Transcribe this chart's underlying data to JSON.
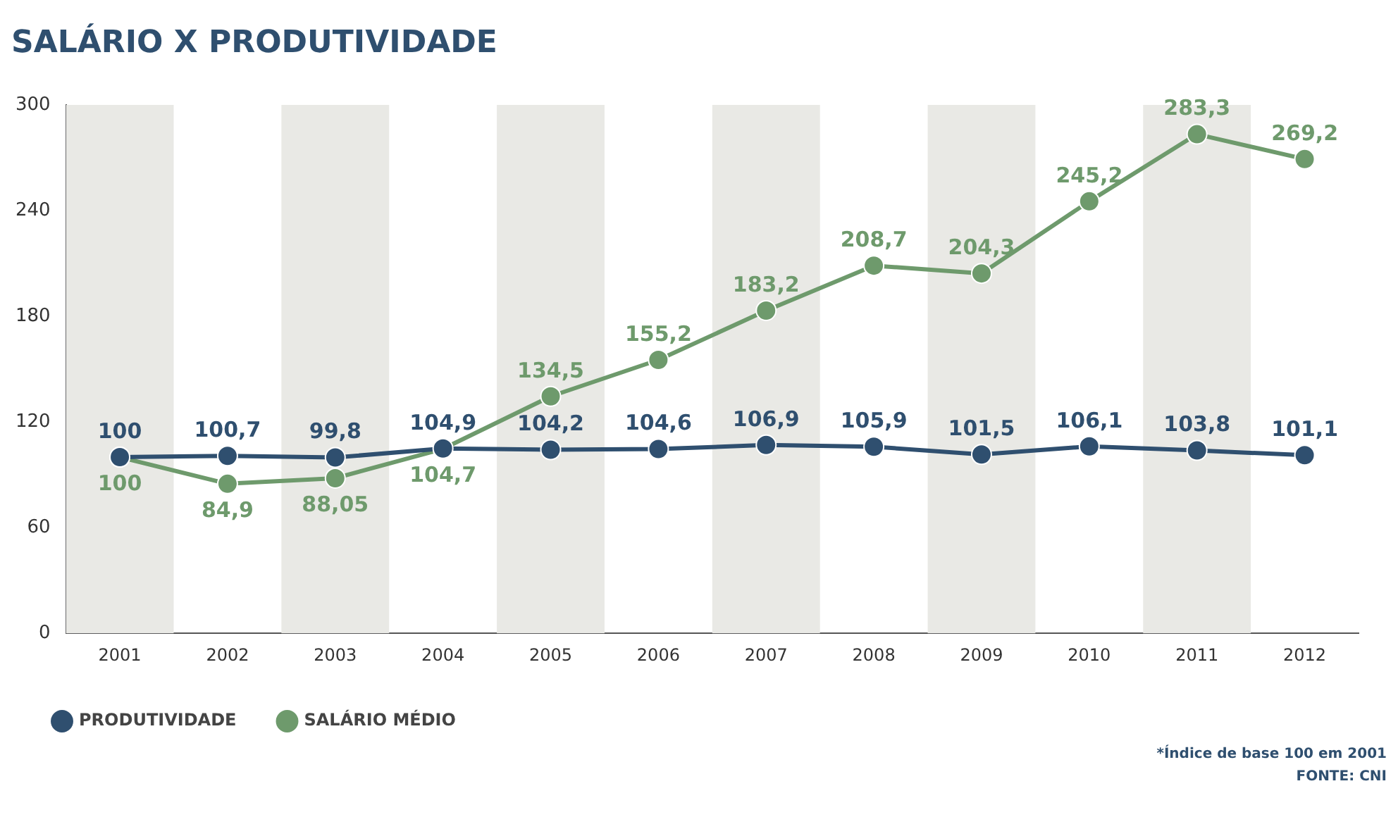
{
  "chart_data": {
    "type": "line",
    "title": "SALÁRIO X PRODUTIVIDADE",
    "categories": [
      "2001",
      "2002",
      "2003",
      "2004",
      "2005",
      "2006",
      "2007",
      "2008",
      "2009",
      "2010",
      "2011",
      "2012"
    ],
    "series": [
      {
        "name": "PRODUTIVIDADE",
        "color": "#2f4f6f",
        "values": [
          100,
          100.7,
          99.8,
          104.9,
          104.2,
          104.6,
          106.9,
          105.9,
          101.5,
          106.1,
          103.8,
          101.1
        ],
        "value_labels": [
          "100",
          "100,7",
          "99,8",
          "104,9",
          "104,2",
          "104,6",
          "106,9",
          "105,9",
          "101,5",
          "106,1",
          "103,8",
          "101,1"
        ]
      },
      {
        "name": "SALÁRIO MÉDIO",
        "color": "#6e9a6c",
        "values": [
          100,
          84.9,
          88.05,
          104.7,
          134.5,
          155.2,
          183.2,
          208.7,
          204.3,
          245.2,
          283.3,
          269.2
        ],
        "value_labels": [
          "100",
          "84,9",
          "88,05",
          "104,7",
          "134,5",
          "155,2",
          "183,2",
          "208,7",
          "204,3",
          "245,2",
          "283,3",
          "269,2"
        ]
      }
    ],
    "ylim": [
      0,
      300
    ],
    "yticks": [
      0,
      60,
      120,
      180,
      240,
      300
    ],
    "bands": [
      {
        "axis": "x",
        "from": "2001",
        "to": "2001",
        "color": "#e9e9e5"
      },
      {
        "axis": "x",
        "from": "2003",
        "to": "2003",
        "color": "#e9e9e5"
      },
      {
        "axis": "x",
        "from": "2005",
        "to": "2005",
        "color": "#e9e9e5"
      },
      {
        "axis": "x",
        "from": "2007",
        "to": "2007",
        "color": "#e9e9e5"
      },
      {
        "axis": "x",
        "from": "2009",
        "to": "2009",
        "color": "#e9e9e5"
      },
      {
        "axis": "x",
        "from": "2011",
        "to": "2011",
        "color": "#e9e9e5"
      }
    ],
    "grid": false,
    "legend": "bottom left",
    "marker": "circle",
    "line_style": "solid",
    "annotations": [
      "*Índice de base 100 em 2001",
      "FONTE: CNI"
    ]
  }
}
